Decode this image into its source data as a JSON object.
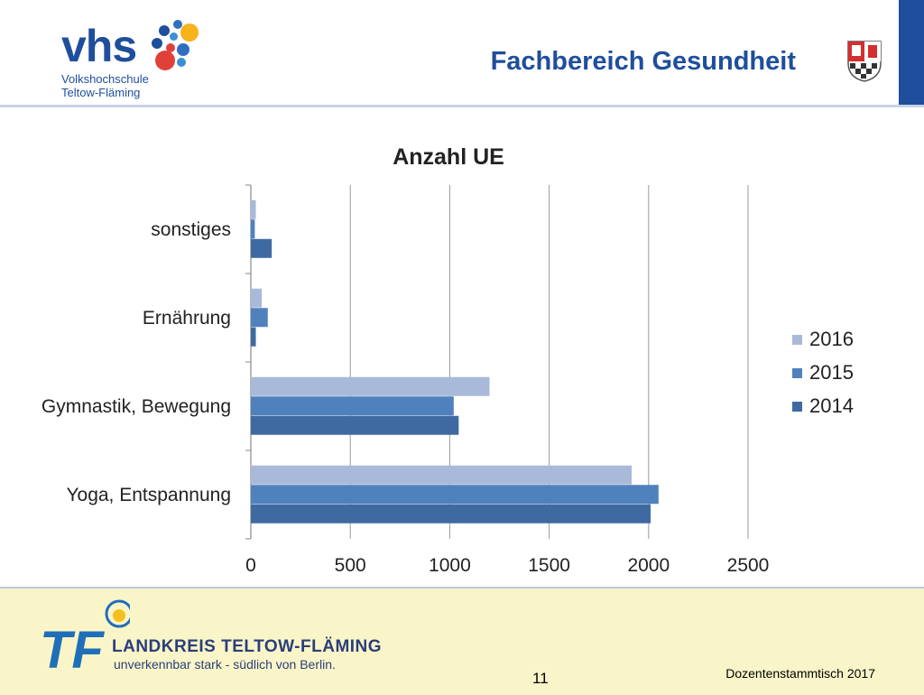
{
  "header": {
    "title": "Fachbereich Gesundheit",
    "vhs_word": "vhs",
    "vhs_line1": "Volkshochschule",
    "vhs_line2": "Teltow-Fläming"
  },
  "footer": {
    "district_name": "LANDKREIS TELTOW-FLÄMING",
    "tagline": "unverkennbar stark - südlich von Berlin.",
    "page_number": "11",
    "event": "Dozentenstammtisch 2017"
  },
  "colors": {
    "brand_blue": "#1f4e9c",
    "footer_bg": "#faf5c8"
  },
  "chart_data": {
    "type": "bar",
    "orientation": "horizontal",
    "title": "Anzahl UE",
    "categories": [
      "sonstiges",
      "Ernährung",
      "Gymnastik, Bewegung",
      "Yoga, Entspannung"
    ],
    "series": [
      {
        "name": "2016",
        "color": "#a9b9d9",
        "values": [
          25,
          55,
          1200,
          1915
        ]
      },
      {
        "name": "2015",
        "color": "#4f81bd",
        "values": [
          20,
          85,
          1020,
          2050
        ]
      },
      {
        "name": "2014",
        "color": "#3f6aa1",
        "values": [
          105,
          25,
          1045,
          2010
        ]
      }
    ],
    "x_ticks": [
      "0",
      "500",
      "1000",
      "1500",
      "2000",
      "2500"
    ],
    "xlim": [
      0,
      2500
    ],
    "grid": true,
    "legend_position": "right"
  }
}
